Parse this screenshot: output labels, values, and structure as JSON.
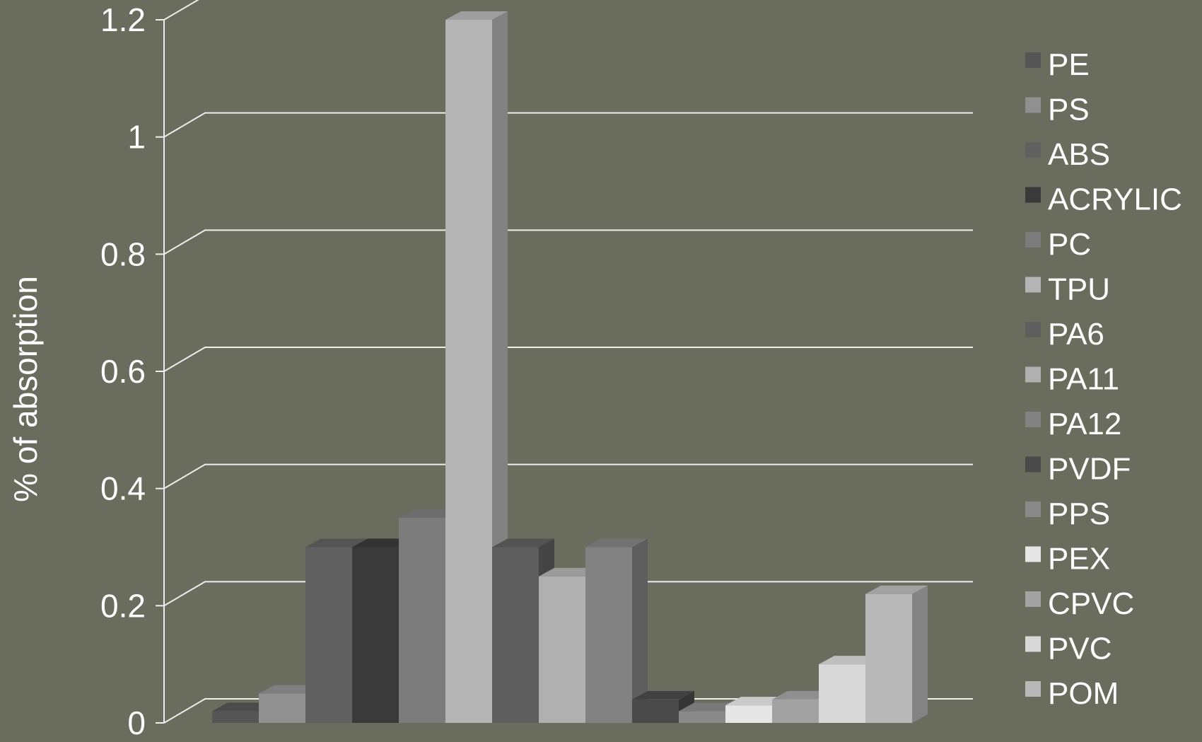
{
  "chart_data": {
    "type": "bar",
    "style": "3d-column",
    "title": "",
    "xlabel": "",
    "ylabel": "% of absorption",
    "ylim": [
      0,
      1.2
    ],
    "yticks": [
      "0",
      "0.2",
      "0.4",
      "0.6",
      "0.8",
      "1",
      "1.2"
    ],
    "grid": true,
    "legend_position": "right",
    "background_color": "#6a6c5e",
    "series": [
      {
        "name": "PE",
        "value": 0.02,
        "color": "#555555"
      },
      {
        "name": "PS",
        "value": 0.05,
        "color": "#909090"
      },
      {
        "name": "ABS",
        "value": 0.3,
        "color": "#606060"
      },
      {
        "name": "ACRYLIC",
        "value": 0.3,
        "color": "#3a3a3a"
      },
      {
        "name": "PC",
        "value": 0.35,
        "color": "#7c7c7c"
      },
      {
        "name": "TPU",
        "value": 1.2,
        "color": "#b4b4b4"
      },
      {
        "name": "PA6",
        "value": 0.3,
        "color": "#5e5e5e"
      },
      {
        "name": "PA11",
        "value": 0.25,
        "color": "#b0b0b0"
      },
      {
        "name": "PA12",
        "value": 0.3,
        "color": "#828282"
      },
      {
        "name": "PVDF",
        "value": 0.04,
        "color": "#4a4a4a"
      },
      {
        "name": "PPS",
        "value": 0.02,
        "color": "#8a8a8a"
      },
      {
        "name": "PEX",
        "value": 0.03,
        "color": "#e6e6e6"
      },
      {
        "name": "CPVC",
        "value": 0.04,
        "color": "#a2a2a2"
      },
      {
        "name": "PVC",
        "value": 0.1,
        "color": "#d8d8d8"
      },
      {
        "name": "POM",
        "value": 0.22,
        "color": "#b8b8b8"
      }
    ]
  }
}
